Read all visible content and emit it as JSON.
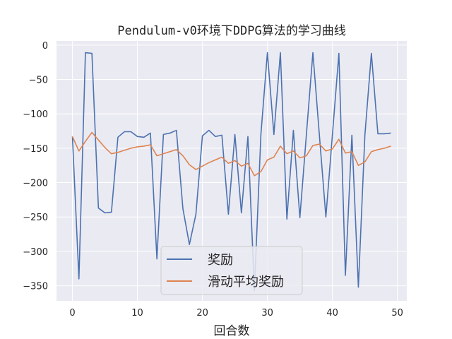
{
  "chart_data": {
    "type": "line",
    "title": "Pendulum-v0环境下DDPG算法的学习曲线",
    "xlabel": "回合数",
    "ylabel": "",
    "xlim": [
      -2.45,
      51.45
    ],
    "ylim": [
      -372,
      6
    ],
    "xticks": [
      0,
      10,
      20,
      30,
      40,
      50
    ],
    "yticks": [
      0,
      -50,
      -100,
      -150,
      -200,
      -250,
      -300,
      -350
    ],
    "xtick_labels": [
      "0",
      "10",
      "20",
      "30",
      "40",
      "50"
    ],
    "ytick_labels": [
      "0",
      "−50",
      "−100",
      "−150",
      "−200",
      "−250",
      "−300",
      "−350"
    ],
    "grid": true,
    "background": "#eaeaf2",
    "legend_position": "lower-center",
    "x": [
      0,
      1,
      2,
      3,
      4,
      5,
      6,
      7,
      8,
      9,
      10,
      11,
      12,
      13,
      14,
      15,
      16,
      17,
      18,
      19,
      20,
      21,
      22,
      23,
      24,
      25,
      26,
      27,
      28,
      29,
      30,
      31,
      32,
      33,
      34,
      35,
      36,
      37,
      38,
      39,
      40,
      41,
      42,
      43,
      44,
      45,
      46,
      47,
      48,
      49
    ],
    "series": [
      {
        "name": "奖励",
        "color": "#4c72b0",
        "values": [
          -133,
          -340,
          -11,
          -12,
          -237,
          -244,
          -243,
          -134,
          -126,
          -126,
          -133,
          -134,
          -128,
          -311,
          -130,
          -128,
          -124,
          -238,
          -290,
          -246,
          -132,
          -124,
          -133,
          -131,
          -246,
          -130,
          -244,
          -133,
          -357,
          -130,
          -11,
          -130,
          -11,
          -253,
          -124,
          -251,
          -130,
          -11,
          -131,
          -250,
          -131,
          -12,
          -335,
          -131,
          -352,
          -131,
          -12,
          -129,
          -129,
          -128
        ]
      },
      {
        "name": "滑动平均奖励",
        "color": "#dd8452",
        "values": [
          -133,
          -154,
          -140,
          -127,
          -138,
          -149,
          -158,
          -156,
          -153,
          -150,
          -148,
          -147,
          -145,
          -161,
          -158,
          -155,
          -152,
          -161,
          -174,
          -181,
          -176,
          -171,
          -167,
          -163,
          -172,
          -168,
          -176,
          -172,
          -190,
          -184,
          -167,
          -163,
          -147,
          -158,
          -154,
          -164,
          -161,
          -146,
          -144,
          -154,
          -151,
          -137,
          -157,
          -155,
          -175,
          -170,
          -155,
          -152,
          -150,
          -147
        ]
      }
    ]
  }
}
